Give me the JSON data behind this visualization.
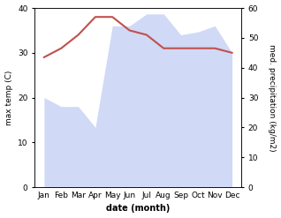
{
  "months": [
    "Jan",
    "Feb",
    "Mar",
    "Apr",
    "May",
    "Jun",
    "Jul",
    "Aug",
    "Sep",
    "Oct",
    "Nov",
    "Dec"
  ],
  "temp": [
    29,
    31,
    34,
    38,
    38,
    35,
    34,
    31,
    31,
    31,
    31,
    30
  ],
  "precip": [
    30,
    27,
    27,
    20,
    54,
    54,
    58,
    58,
    51,
    52,
    54,
    45
  ],
  "temp_color": "#c0504d",
  "precip_color": "#aabbee",
  "precip_fill_alpha": 0.55,
  "xlabel": "date (month)",
  "ylabel_left": "max temp (C)",
  "ylabel_right": "med. precipitation (kg/m2)",
  "ylim_left": [
    0,
    40
  ],
  "ylim_right": [
    0,
    60
  ],
  "yticks_left": [
    0,
    10,
    20,
    30,
    40
  ],
  "yticks_right": [
    0,
    10,
    20,
    30,
    40,
    50,
    60
  ],
  "bg_color": "#ffffff"
}
